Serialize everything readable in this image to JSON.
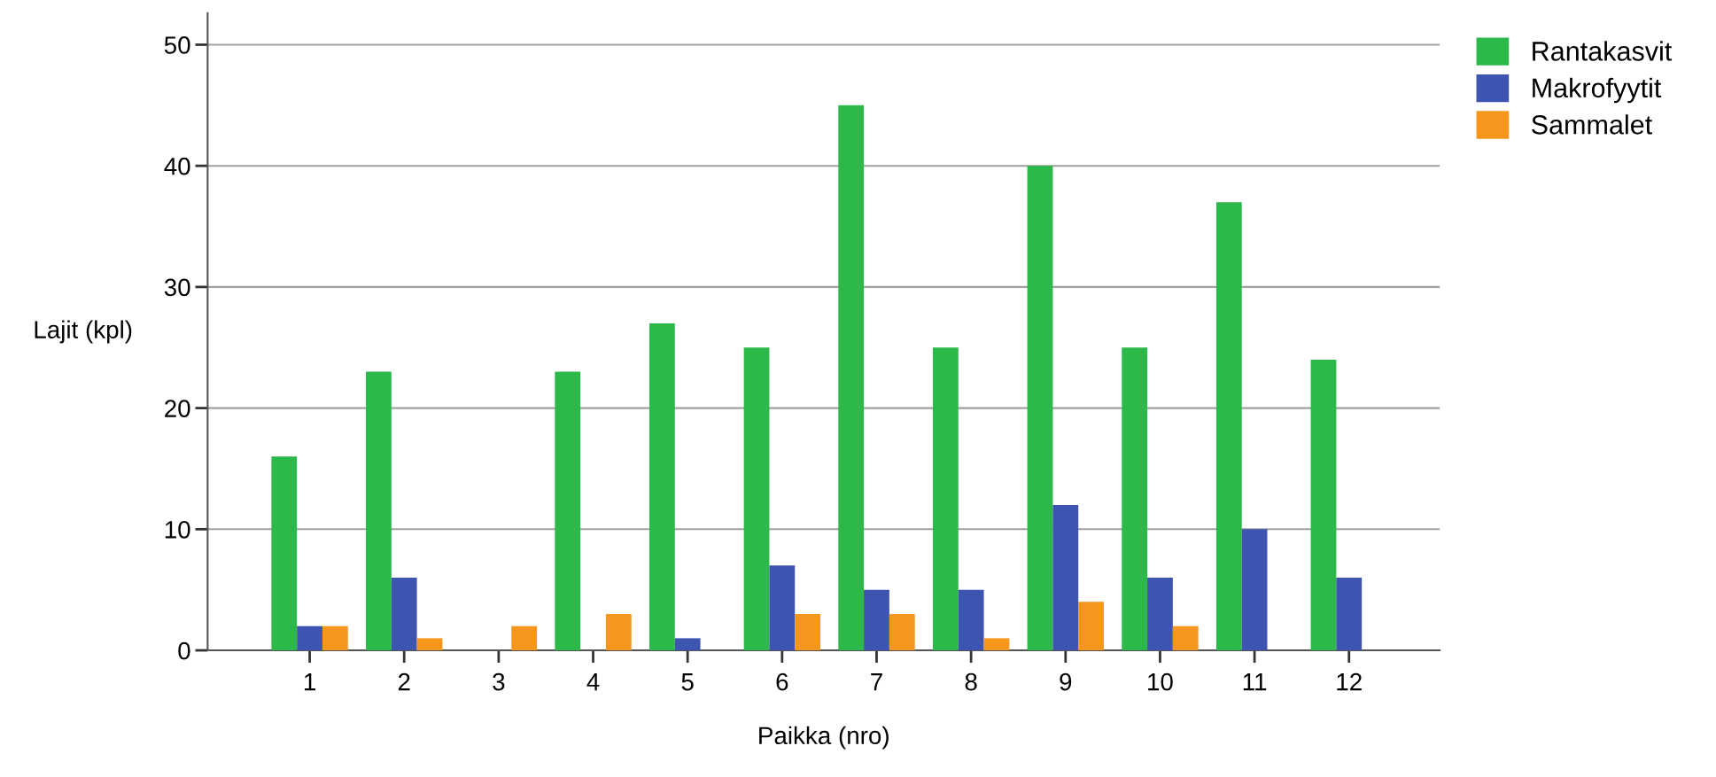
{
  "chart_data": {
    "type": "bar",
    "xlabel": "Paikka (nro)",
    "ylabel": "Lajit (kpl)",
    "categories": [
      "1",
      "2",
      "3",
      "4",
      "5",
      "6",
      "7",
      "8",
      "9",
      "10",
      "11",
      "12"
    ],
    "series": [
      {
        "name": "Rantakasvit",
        "color": "#2db84a",
        "values": [
          16,
          23,
          0,
          23,
          27,
          25,
          45,
          25,
          40,
          25,
          37,
          24
        ]
      },
      {
        "name": "Makrofyytit",
        "color": "#3d55b0",
        "values": [
          2,
          6,
          0,
          0,
          1,
          7,
          5,
          5,
          12,
          6,
          10,
          6
        ]
      },
      {
        "name": "Sammalet",
        "color": "#f7961d",
        "values": [
          2,
          1,
          2,
          3,
          0,
          3,
          3,
          1,
          4,
          2,
          0,
          0
        ]
      }
    ],
    "ylim": [
      0,
      52.6
    ],
    "yticks": [
      0,
      10,
      20,
      30,
      40,
      50
    ],
    "grid": "y",
    "legend": "top right"
  }
}
